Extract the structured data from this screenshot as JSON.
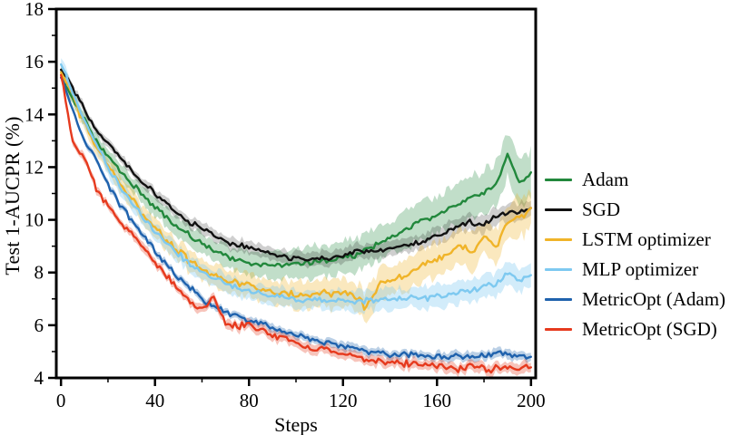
{
  "figure_title": "",
  "chart_data": {
    "type": "line",
    "title": "",
    "xlabel": "Steps",
    "ylabel": "Test 1-AUCPR (%)",
    "xlim": [
      0,
      200
    ],
    "ylim": [
      4,
      18
    ],
    "x_ticks": [
      0,
      40,
      80,
      120,
      160,
      200
    ],
    "x_minor_ticks": [
      20,
      60,
      100,
      140,
      180
    ],
    "y_ticks": [
      4,
      6,
      8,
      10,
      12,
      14,
      16,
      18
    ],
    "y_minor_ticks": [
      5,
      7,
      9,
      11,
      13,
      15,
      17
    ],
    "grid": false,
    "legend_position": "right",
    "axis_color": "#000000",
    "x_anchor_step": 5,
    "series": [
      {
        "name": "Adam",
        "color": "#22883C",
        "band_halfwidth": [
          0.2,
          0.85
        ],
        "band_opacity": 0.28,
        "noise": 0.12,
        "values": [
          15.5,
          14.6,
          13.8,
          13.0,
          12.4,
          11.9,
          11.4,
          10.9,
          10.5,
          10.1,
          9.7,
          9.4,
          9.1,
          8.85,
          8.65,
          8.5,
          8.35,
          8.3,
          8.3,
          8.3,
          8.4,
          8.35,
          8.45,
          8.5,
          8.55,
          8.65,
          8.9,
          9.1,
          9.3,
          9.55,
          9.8,
          10.0,
          10.2,
          10.45,
          10.6,
          10.85,
          11.0,
          11.3,
          12.5,
          11.4,
          11.8
        ]
      },
      {
        "name": "SGD",
        "color": "#111111",
        "band_halfwidth": [
          0.15,
          0.35
        ],
        "band_opacity": 0.2,
        "noise": 0.12,
        "values": [
          15.7,
          15.0,
          14.2,
          13.4,
          12.9,
          12.4,
          11.9,
          11.4,
          11.0,
          10.6,
          10.2,
          9.9,
          9.7,
          9.4,
          9.2,
          9.05,
          8.95,
          8.85,
          8.7,
          8.6,
          8.55,
          8.5,
          8.5,
          8.55,
          8.6,
          8.75,
          8.8,
          8.85,
          8.9,
          9.0,
          9.1,
          9.25,
          9.4,
          9.55,
          9.85,
          9.9,
          9.8,
          10.15,
          10.25,
          10.3,
          10.45
        ]
      },
      {
        "name": "LSTM optimizer",
        "color": "#F0B429",
        "band_halfwidth": [
          0.25,
          0.75
        ],
        "band_opacity": 0.3,
        "noise": 0.16,
        "values": [
          15.6,
          14.7,
          13.6,
          12.8,
          12.1,
          11.4,
          10.8,
          10.2,
          9.7,
          9.2,
          8.8,
          8.4,
          8.1,
          7.9,
          7.7,
          7.6,
          7.5,
          7.4,
          7.3,
          7.25,
          7.15,
          7.2,
          7.3,
          7.2,
          7.3,
          7.15,
          6.6,
          7.5,
          7.7,
          7.85,
          8.05,
          8.3,
          8.5,
          8.75,
          9.05,
          8.8,
          9.35,
          8.95,
          9.9,
          10.1,
          10.45
        ]
      },
      {
        "name": "MLP optimizer",
        "color": "#7EC9F0",
        "band_halfwidth": [
          0.25,
          0.45
        ],
        "band_opacity": 0.35,
        "noise": 0.13,
        "values": [
          15.9,
          14.8,
          13.7,
          12.9,
          12.0,
          11.3,
          10.7,
          10.1,
          9.6,
          9.1,
          8.7,
          8.3,
          8.0,
          7.8,
          7.6,
          7.45,
          7.3,
          7.2,
          7.1,
          7.1,
          7.0,
          6.95,
          7.0,
          6.9,
          6.95,
          6.9,
          6.95,
          6.9,
          7.0,
          6.95,
          7.05,
          7.0,
          7.1,
          7.2,
          7.25,
          7.35,
          7.5,
          7.55,
          8.0,
          7.7,
          7.9
        ]
      },
      {
        "name": "MetricOpt (Adam)",
        "color": "#1F62AD",
        "band_halfwidth": [
          0.12,
          0.18
        ],
        "band_opacity": 0.3,
        "noise": 0.13,
        "values": [
          15.4,
          14.1,
          13.0,
          12.3,
          11.3,
          10.6,
          10.0,
          9.4,
          8.8,
          8.3,
          7.8,
          7.4,
          7.0,
          6.7,
          6.5,
          6.35,
          6.2,
          6.1,
          5.9,
          5.75,
          5.65,
          5.5,
          5.4,
          5.3,
          5.2,
          5.1,
          5.0,
          4.95,
          4.9,
          4.9,
          4.9,
          4.85,
          4.85,
          4.8,
          4.85,
          4.8,
          4.85,
          4.9,
          4.9,
          4.85,
          4.8
        ]
      },
      {
        "name": "MetricOpt (SGD)",
        "color": "#E63A1E",
        "band_halfwidth": [
          0.15,
          0.22
        ],
        "band_opacity": 0.3,
        "noise": 0.17,
        "values": [
          15.5,
          13.0,
          12.4,
          11.2,
          10.5,
          9.9,
          9.5,
          9.0,
          8.4,
          7.9,
          7.4,
          6.9,
          6.6,
          7.1,
          6.1,
          5.95,
          6.1,
          5.8,
          5.6,
          5.5,
          5.35,
          5.2,
          5.1,
          4.95,
          4.9,
          4.8,
          4.7,
          4.6,
          4.65,
          4.55,
          4.5,
          4.5,
          4.45,
          4.4,
          4.3,
          4.45,
          4.4,
          4.35,
          4.45,
          4.35,
          4.4
        ]
      }
    ]
  }
}
